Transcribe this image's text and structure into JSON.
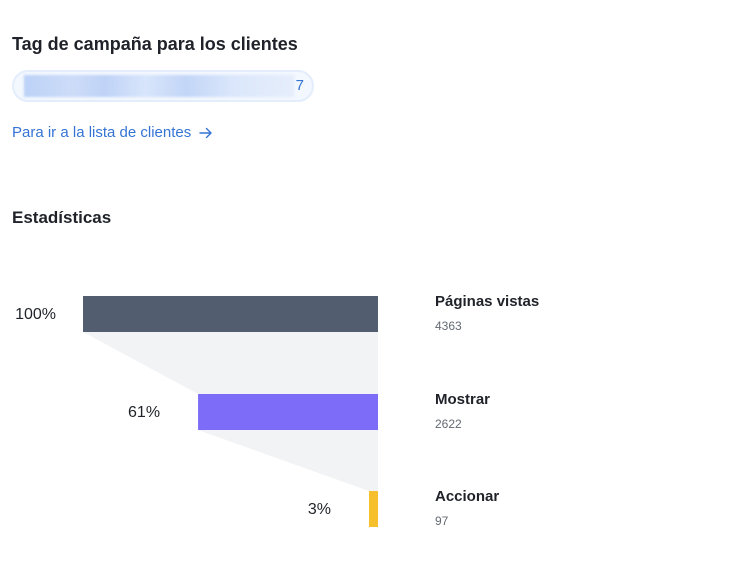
{
  "campaign": {
    "title": "Tag de campaña para los clientes",
    "tag_visible_suffix": "7",
    "client_list_link": "Para ir a la lista de clientes"
  },
  "stats": {
    "title": "Estadísticas"
  },
  "colors": {
    "link": "#3574d4",
    "stage_1": "#525e70",
    "stage_2": "#7c6cf7",
    "stage_3": "#f5c02b",
    "funnel_shadow": "#f2f3f5"
  },
  "chart_data": {
    "type": "funnel",
    "stages": [
      {
        "name": "Páginas vistas",
        "value": 4363,
        "percent_label": "100%",
        "percent": 100
      },
      {
        "name": "Mostrar",
        "value": 2622,
        "percent_label": "61%",
        "percent": 61
      },
      {
        "name": "Accionar",
        "value": 97,
        "percent_label": "3%",
        "percent": 3
      }
    ]
  }
}
